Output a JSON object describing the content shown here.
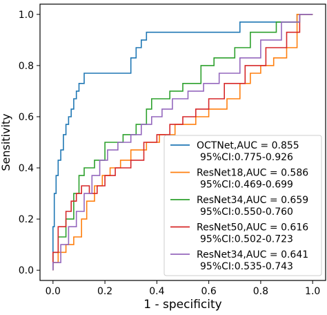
{
  "chart_data": {
    "type": "line",
    "title": "",
    "xlabel": "1 - specificity",
    "ylabel": "Sensitivity",
    "xlim": [
      -0.05,
      1.05
    ],
    "ylim": [
      -0.04,
      1.04
    ],
    "x_ticks": [
      0.0,
      0.2,
      0.4,
      0.6,
      0.8,
      1.0
    ],
    "y_ticks": [
      0.0,
      0.2,
      0.4,
      0.6,
      0.8,
      1.0
    ],
    "x_tick_labels": [
      "0.0",
      "0.2",
      "0.4",
      "0.6",
      "0.8",
      "1.0"
    ],
    "y_tick_labels": [
      "0.0",
      "0.2",
      "0.4",
      "0.6",
      "0.8",
      "1.0"
    ],
    "grid": false,
    "legend_position": "lower-right",
    "series": [
      {
        "name": "OCTNet,AUC = 0.855\n95%CI:0.775-0.926",
        "legend_line1": "OCTNet,AUC = 0.855",
        "legend_line2": "95%CI:0.775-0.926",
        "color": "#1f77b4",
        "x": [
          0.0,
          0.0,
          0.005,
          0.005,
          0.012,
          0.012,
          0.02,
          0.02,
          0.03,
          0.03,
          0.04,
          0.04,
          0.05,
          0.05,
          0.06,
          0.06,
          0.07,
          0.07,
          0.08,
          0.08,
          0.09,
          0.09,
          0.1,
          0.1,
          0.11,
          0.11,
          0.12,
          0.12,
          0.13,
          0.13,
          0.14,
          0.14,
          0.3,
          0.3,
          0.32,
          0.32,
          0.34,
          0.34,
          0.36,
          0.36,
          0.72,
          0.72,
          0.94,
          0.94,
          1.0
        ],
        "y": [
          0.0,
          0.17,
          0.17,
          0.3,
          0.3,
          0.37,
          0.37,
          0.43,
          0.43,
          0.47,
          0.47,
          0.53,
          0.53,
          0.57,
          0.57,
          0.6,
          0.6,
          0.63,
          0.63,
          0.67,
          0.67,
          0.7,
          0.7,
          0.73,
          0.73,
          0.73,
          0.73,
          0.77,
          0.77,
          0.77,
          0.77,
          0.77,
          0.77,
          0.83,
          0.83,
          0.87,
          0.87,
          0.9,
          0.9,
          0.93,
          0.93,
          0.97,
          0.97,
          1.0,
          1.0
        ]
      },
      {
        "name": "ResNet18,AUC = 0.586\n95%CI:0.469-0.699",
        "legend_line1": "ResNet18,AUC = 0.586",
        "legend_line2": "95%CI:0.469-0.699",
        "color": "#ff7f0e",
        "x": [
          0.0,
          0.0,
          0.02,
          0.02,
          0.05,
          0.05,
          0.08,
          0.08,
          0.11,
          0.11,
          0.13,
          0.13,
          0.16,
          0.16,
          0.19,
          0.19,
          0.22,
          0.22,
          0.26,
          0.26,
          0.3,
          0.3,
          0.36,
          0.36,
          0.41,
          0.41,
          0.47,
          0.47,
          0.55,
          0.55,
          0.6,
          0.6,
          0.67,
          0.67,
          0.72,
          0.72,
          0.76,
          0.76,
          0.8,
          0.8,
          0.85,
          0.85,
          0.9,
          0.9,
          0.94,
          0.94,
          1.0
        ],
        "y": [
          0.0,
          0.03,
          0.03,
          0.07,
          0.07,
          0.1,
          0.1,
          0.13,
          0.13,
          0.2,
          0.2,
          0.27,
          0.27,
          0.33,
          0.33,
          0.37,
          0.37,
          0.4,
          0.4,
          0.43,
          0.43,
          0.47,
          0.47,
          0.5,
          0.5,
          0.53,
          0.53,
          0.57,
          0.57,
          0.6,
          0.6,
          0.63,
          0.63,
          0.67,
          0.67,
          0.73,
          0.73,
          0.77,
          0.77,
          0.8,
          0.8,
          0.83,
          0.83,
          0.87,
          0.87,
          1.0,
          1.0
        ]
      },
      {
        "name": "ResNet34,AUC = 0.659\n95%CI:0.550-0.760",
        "legend_line1": "ResNet34,AUC = 0.659",
        "legend_line2": "95%CI:0.550-0.760",
        "color": "#2ca02c",
        "x": [
          0.0,
          0.0,
          0.02,
          0.02,
          0.05,
          0.05,
          0.08,
          0.08,
          0.1,
          0.1,
          0.12,
          0.12,
          0.16,
          0.16,
          0.2,
          0.2,
          0.27,
          0.27,
          0.32,
          0.32,
          0.36,
          0.36,
          0.38,
          0.38,
          0.45,
          0.45,
          0.5,
          0.5,
          0.57,
          0.57,
          0.62,
          0.62,
          0.7,
          0.7,
          0.76,
          0.76,
          0.86,
          0.86,
          0.95,
          0.95,
          1.0
        ],
        "y": [
          0.0,
          0.07,
          0.07,
          0.13,
          0.13,
          0.2,
          0.2,
          0.3,
          0.3,
          0.37,
          0.37,
          0.4,
          0.4,
          0.43,
          0.43,
          0.5,
          0.5,
          0.53,
          0.53,
          0.57,
          0.57,
          0.63,
          0.63,
          0.67,
          0.67,
          0.7,
          0.7,
          0.73,
          0.73,
          0.8,
          0.8,
          0.83,
          0.83,
          0.87,
          0.87,
          0.93,
          0.93,
          0.97,
          0.97,
          1.0,
          1.0
        ]
      },
      {
        "name": "ResNet50,AUC = 0.616\n95%CI:0.502-0.723",
        "legend_line1": "ResNet50,AUC = 0.616",
        "legend_line2": "95%CI:0.502-0.723",
        "color": "#d62728",
        "x": [
          0.0,
          0.0,
          0.02,
          0.02,
          0.05,
          0.05,
          0.07,
          0.07,
          0.09,
          0.09,
          0.11,
          0.11,
          0.14,
          0.14,
          0.17,
          0.17,
          0.2,
          0.2,
          0.24,
          0.24,
          0.3,
          0.3,
          0.35,
          0.35,
          0.4,
          0.4,
          0.45,
          0.45,
          0.5,
          0.5,
          0.55,
          0.55,
          0.6,
          0.6,
          0.66,
          0.66,
          0.74,
          0.74,
          0.82,
          0.82,
          0.9,
          0.9,
          0.95,
          0.95,
          1.0
        ],
        "y": [
          0.0,
          0.07,
          0.07,
          0.17,
          0.17,
          0.23,
          0.23,
          0.27,
          0.27,
          0.3,
          0.3,
          0.33,
          0.33,
          0.3,
          0.3,
          0.33,
          0.33,
          0.37,
          0.37,
          0.4,
          0.4,
          0.43,
          0.43,
          0.5,
          0.5,
          0.53,
          0.53,
          0.57,
          0.57,
          0.6,
          0.6,
          0.63,
          0.63,
          0.67,
          0.67,
          0.73,
          0.73,
          0.8,
          0.8,
          0.87,
          0.87,
          0.93,
          0.93,
          1.0,
          1.0
        ]
      },
      {
        "name": "ResNet34,AUC = 0.641\n95%CI:0.535-0.743",
        "legend_line1": "ResNet34,AUC = 0.641",
        "legend_line2": "95%CI:0.535-0.743",
        "color": "#9467bd",
        "x": [
          0.0,
          0.0,
          0.03,
          0.03,
          0.06,
          0.06,
          0.09,
          0.09,
          0.12,
          0.12,
          0.15,
          0.15,
          0.18,
          0.18,
          0.21,
          0.21,
          0.25,
          0.25,
          0.3,
          0.3,
          0.34,
          0.34,
          0.38,
          0.38,
          0.42,
          0.42,
          0.46,
          0.46,
          0.52,
          0.52,
          0.58,
          0.58,
          0.64,
          0.64,
          0.72,
          0.72,
          0.8,
          0.8,
          0.88,
          0.88,
          0.95,
          0.95,
          1.0
        ],
        "y": [
          0.0,
          0.03,
          0.03,
          0.1,
          0.1,
          0.17,
          0.17,
          0.23,
          0.23,
          0.3,
          0.3,
          0.37,
          0.37,
          0.43,
          0.43,
          0.47,
          0.47,
          0.5,
          0.5,
          0.53,
          0.53,
          0.57,
          0.57,
          0.6,
          0.6,
          0.63,
          0.63,
          0.67,
          0.67,
          0.7,
          0.7,
          0.73,
          0.73,
          0.77,
          0.77,
          0.83,
          0.83,
          0.9,
          0.9,
          0.97,
          0.97,
          1.0,
          1.0
        ]
      }
    ]
  }
}
